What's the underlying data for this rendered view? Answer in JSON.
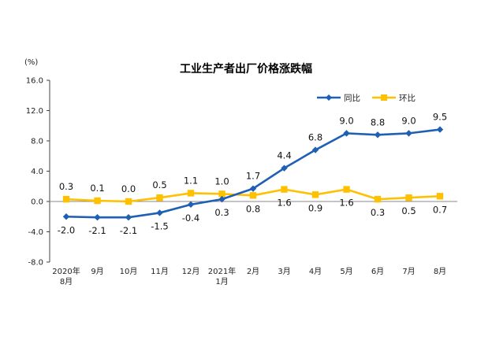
{
  "chart_data": {
    "type": "line",
    "title": "工业生产者出厂价格涨跌幅",
    "unit_label": "(%)",
    "categories": [
      [
        "2020年",
        "8月"
      ],
      [
        "9月"
      ],
      [
        "10月"
      ],
      [
        "11月"
      ],
      [
        "12月"
      ],
      [
        "2021年",
        "1月"
      ],
      [
        "2月"
      ],
      [
        "3月"
      ],
      [
        "4月"
      ],
      [
        "5月"
      ],
      [
        "6月"
      ],
      [
        "7月"
      ],
      [
        "8月"
      ]
    ],
    "ylim": [
      -8.0,
      16.0
    ],
    "yticks": [
      {
        "value": 16,
        "label": "16.0"
      },
      {
        "value": 12,
        "label": "12.0"
      },
      {
        "value": 8,
        "label": "8.0"
      },
      {
        "value": 4,
        "label": "4.0"
      },
      {
        "value": 0,
        "label": "0.0"
      },
      {
        "value": -4,
        "label": "-4.0"
      },
      {
        "value": -8,
        "label": "-8.0"
      }
    ],
    "series": [
      {
        "name": "同比",
        "color": "#1f5fb4",
        "marker": "diamond",
        "values": [
          -2.0,
          -2.1,
          -2.1,
          -1.5,
          -0.4,
          0.3,
          1.7,
          4.4,
          6.8,
          9.0,
          8.8,
          9.0,
          9.5
        ],
        "labels": [
          "-2.0",
          "-2.1",
          "-2.1",
          "-1.5",
          "-0.4",
          "0.3",
          "1.7",
          "4.4",
          "6.8",
          "9.0",
          "8.8",
          "9.0",
          "9.5"
        ],
        "label_pos": [
          "below",
          "below",
          "below",
          "below",
          "below",
          "below",
          "above",
          "above",
          "above",
          "above",
          "above",
          "above",
          "above"
        ]
      },
      {
        "name": "环比",
        "color": "#ffc000",
        "marker": "square",
        "values": [
          0.3,
          0.1,
          0.0,
          0.5,
          1.1,
          1.0,
          0.8,
          1.6,
          0.9,
          1.6,
          0.3,
          0.5,
          0.7
        ],
        "labels": [
          "0.3",
          "0.1",
          "0.0",
          "0.5",
          "1.1",
          "1.0",
          "0.8",
          "1.6",
          "0.9",
          "1.6",
          "0.3",
          "0.5",
          "0.7"
        ],
        "label_pos": [
          "above",
          "above",
          "above",
          "above",
          "above",
          "above",
          "below",
          "below",
          "below",
          "below",
          "below",
          "below",
          "below"
        ]
      }
    ],
    "legend_position": "top-right",
    "grid": false
  }
}
